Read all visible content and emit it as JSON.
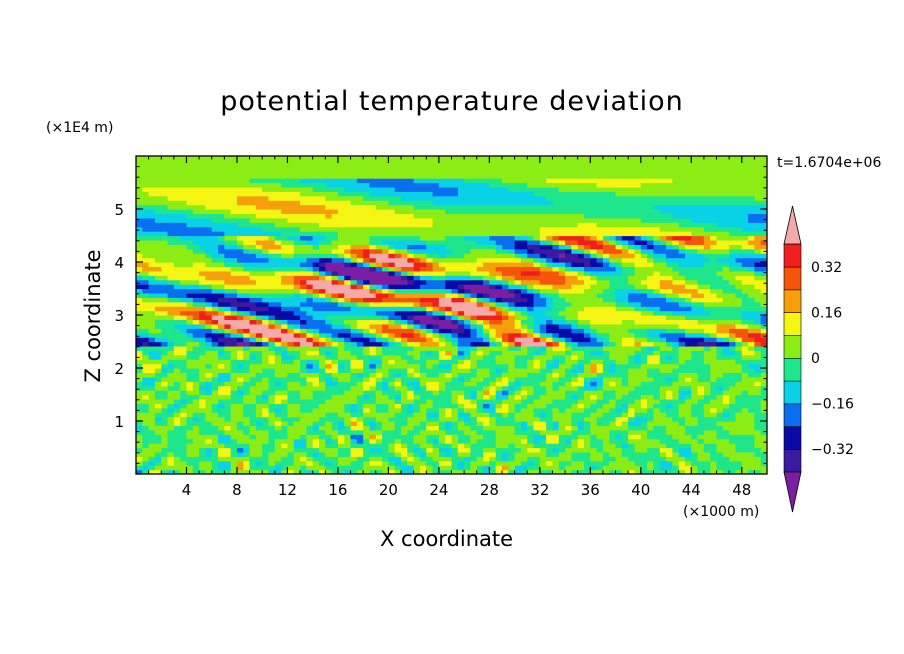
{
  "chart_data": {
    "type": "heatmap",
    "title": "potential temperature deviation",
    "xlabel": "X coordinate",
    "ylabel": "Z coordinate",
    "x_multiplier": "(×1000 m)",
    "y_multiplier": "(×1E4 m)",
    "time_label": "t=1.6704e+06",
    "xlim": [
      0,
      50
    ],
    "ylim": [
      0,
      6
    ],
    "x_ticks": [
      4,
      8,
      12,
      16,
      20,
      24,
      28,
      32,
      36,
      40,
      44,
      48
    ],
    "y_ticks": [
      1,
      2,
      3,
      4,
      5
    ],
    "colorbar": {
      "levels": [
        -0.4,
        -0.32,
        -0.24,
        -0.16,
        -0.08,
        0,
        0.08,
        0.16,
        0.24,
        0.32,
        0.4
      ],
      "tick_labels": [
        "0.32",
        "0.16",
        "0",
        "−0.16",
        "−0.32"
      ],
      "tick_values": [
        0.32,
        0.16,
        0,
        -0.16,
        -0.32
      ],
      "colors": [
        "#7a1fa2",
        "#3c1aa0",
        "#0a0aa8",
        "#0a6ef0",
        "#0ad2e6",
        "#1ee68c",
        "#8ced14",
        "#f5f514",
        "#f5a00a",
        "#f5550a",
        "#f01e1e",
        "#f5aaaa"
      ],
      "extend": "both"
    },
    "regions": [
      {
        "z_range": [
          0,
          2.45
        ],
        "description_values": [
          -0.08,
          0.08
        ]
      },
      {
        "z_range": [
          2.45,
          4.5
        ],
        "description_values": [
          -0.4,
          0.4
        ]
      },
      {
        "z_range": [
          4.5,
          6
        ],
        "description_values": [
          -0.24,
          0.24
        ]
      }
    ]
  },
  "colors": {
    "frame": "#000000",
    "background": "#ffffff"
  }
}
